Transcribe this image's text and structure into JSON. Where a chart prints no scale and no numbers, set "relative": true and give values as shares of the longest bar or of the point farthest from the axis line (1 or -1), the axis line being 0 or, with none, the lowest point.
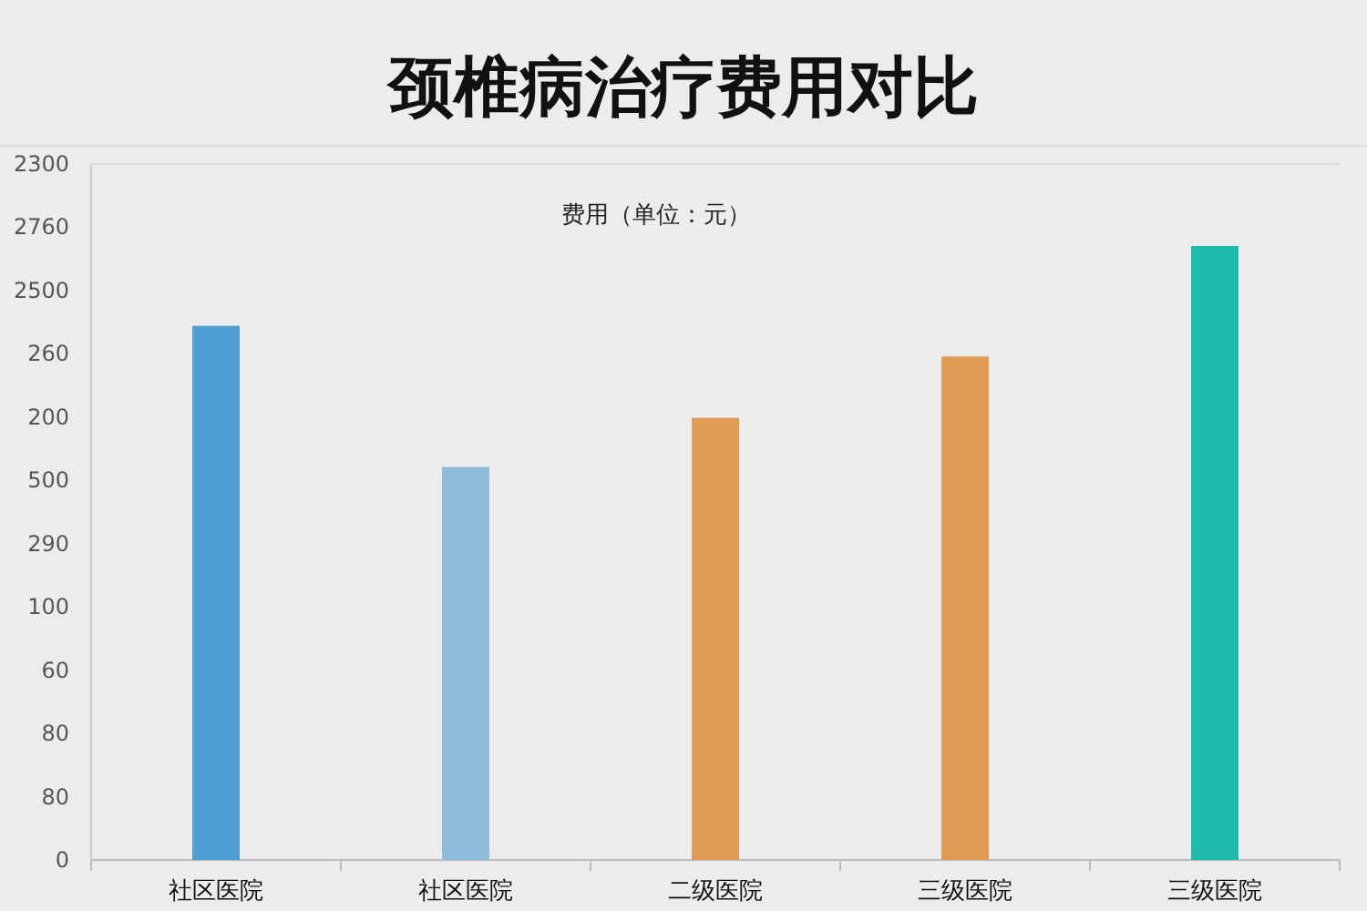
{
  "chart_data": {
    "type": "bar",
    "title": "颈椎病治疗费用对比",
    "ylabel": "费用（单位：元）",
    "categories": [
      "社区医院",
      "社区医院",
      "二级医院",
      "三级医院",
      "三级医院"
    ],
    "values": [
      0.87,
      0.64,
      0.72,
      0.82,
      1
    ],
    "colors": [
      "#4f9fd4",
      "#8fbcd9",
      "#e09b55",
      "#e09b55",
      "#1dbaae"
    ],
    "relative": true,
    "annotations": [
      "2300",
      "2760",
      "2500",
      "260",
      "200",
      "500",
      "290",
      "100",
      "60",
      "80",
      "80",
      "0"
    ]
  }
}
